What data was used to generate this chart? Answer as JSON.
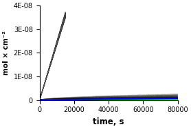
{
  "title": "",
  "xlabel": "time, s",
  "ylabel": "mol × cm⁻²",
  "xlim": [
    0,
    80000
  ],
  "ylim": [
    0,
    4e-08
  ],
  "ytick_vals": [
    0,
    1e-08,
    2e-08,
    3e-08,
    4e-08
  ],
  "ytick_labels": [
    "0",
    "1E-08",
    "2E-08",
    "3E-08",
    "4E-08"
  ],
  "xticks": [
    0,
    20000,
    40000,
    60000,
    80000
  ],
  "background_color": "#ffffff",
  "gray_line": {
    "slope": 2.4e-12,
    "t_max": 15000,
    "color": "#666666"
  },
  "red_line": {
    "a": 3.6e-13,
    "power": 0.58,
    "color": "#ff0000"
  },
  "green_line": {
    "a": 1.9e-13,
    "power": 0.58,
    "color": "#00dd00"
  },
  "blue_line": {
    "a": 1e-14,
    "power": 1.0,
    "color": "#0000ff"
  },
  "linewidth": 1.5,
  "noise_seed": 42
}
